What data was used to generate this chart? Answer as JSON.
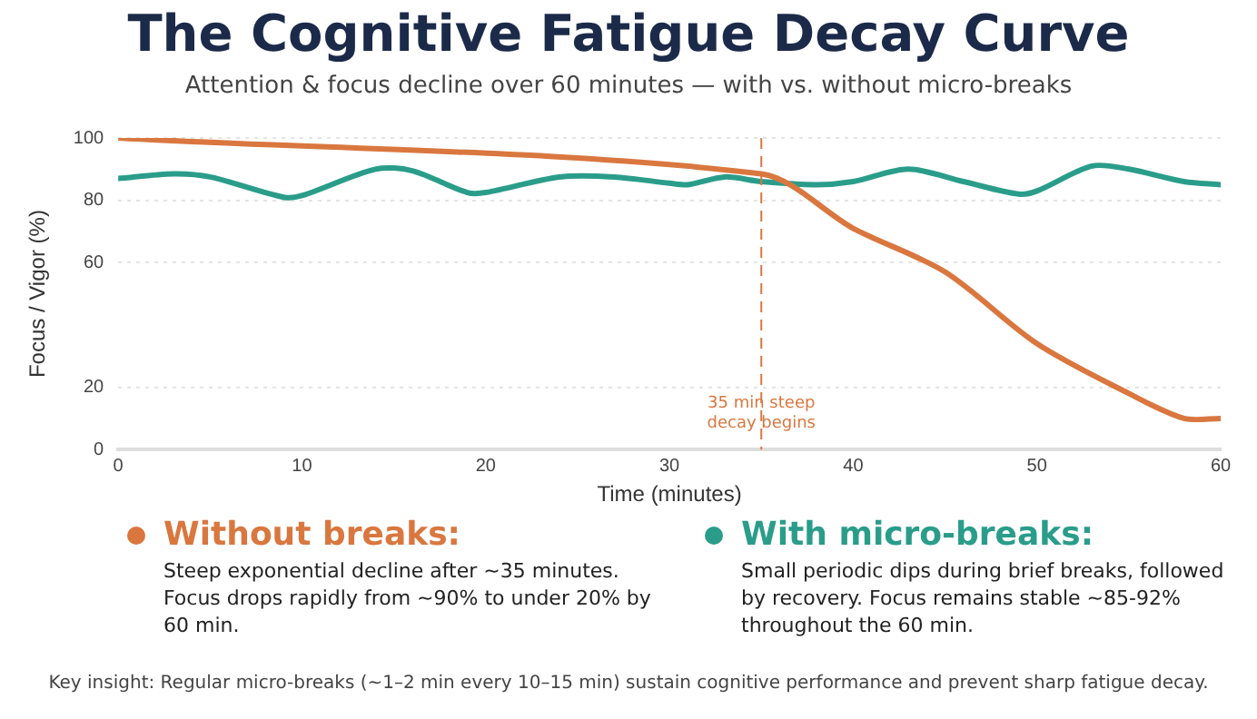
{
  "chart_data": {
    "type": "line",
    "title": "The Cognitive Fatigue Decay Curve",
    "subtitle": "Attention & focus decline over 60 minutes — with vs. without micro-breaks",
    "xlabel": "Time (minutes)",
    "ylabel": "Focus / Vigor (%)",
    "xlim": [
      0,
      60
    ],
    "xticks": [
      0,
      10,
      20,
      30,
      40,
      50,
      60
    ],
    "ylim": [
      0,
      100
    ],
    "yticks": [
      0,
      20,
      60,
      80,
      100
    ],
    "grid": "y",
    "legend": "bottom",
    "marker": "none",
    "line_style": "solid",
    "series": [
      {
        "name": "Without breaks:",
        "color": "#d9773f",
        "x": [
          0,
          35,
          40,
          45,
          50,
          55,
          58,
          60
        ],
        "values": [
          100,
          88.5,
          71,
          57,
          34,
          18,
          10,
          10
        ]
      },
      {
        "name": "With micro-breaks:",
        "color": "#2a9d8a",
        "x": [
          0,
          3,
          5,
          9,
          10,
          14,
          16,
          19,
          20,
          24,
          27,
          30,
          31,
          33,
          35,
          38,
          40,
          43,
          46,
          49,
          50,
          53,
          55,
          58,
          60
        ],
        "values": [
          87,
          88.5,
          87.5,
          81,
          81.5,
          90,
          89.5,
          82.5,
          82.5,
          87.5,
          87.5,
          85.5,
          85,
          87.5,
          86,
          85,
          86,
          90,
          86,
          82,
          83,
          91,
          90,
          86,
          85
        ]
      }
    ],
    "ref_lines": [
      {
        "axis": "x",
        "value": 35,
        "label": "35 min steep decay begins",
        "color": "#d9773f",
        "line_style": "dashed"
      }
    ],
    "annotations": [
      "Steep exponential decline after ~35 minutes. Focus drops rapidly from ~90% to under 20% by 60 min.",
      "Small periodic dips during brief breaks, followed by recovery. Focus remains stable ~85-92% throughout the 60 min.",
      "Key insight: Regular micro-breaks (~1–2 min every 10–15 min) sustain cognitive performance and prevent sharp fatigue decay."
    ]
  }
}
